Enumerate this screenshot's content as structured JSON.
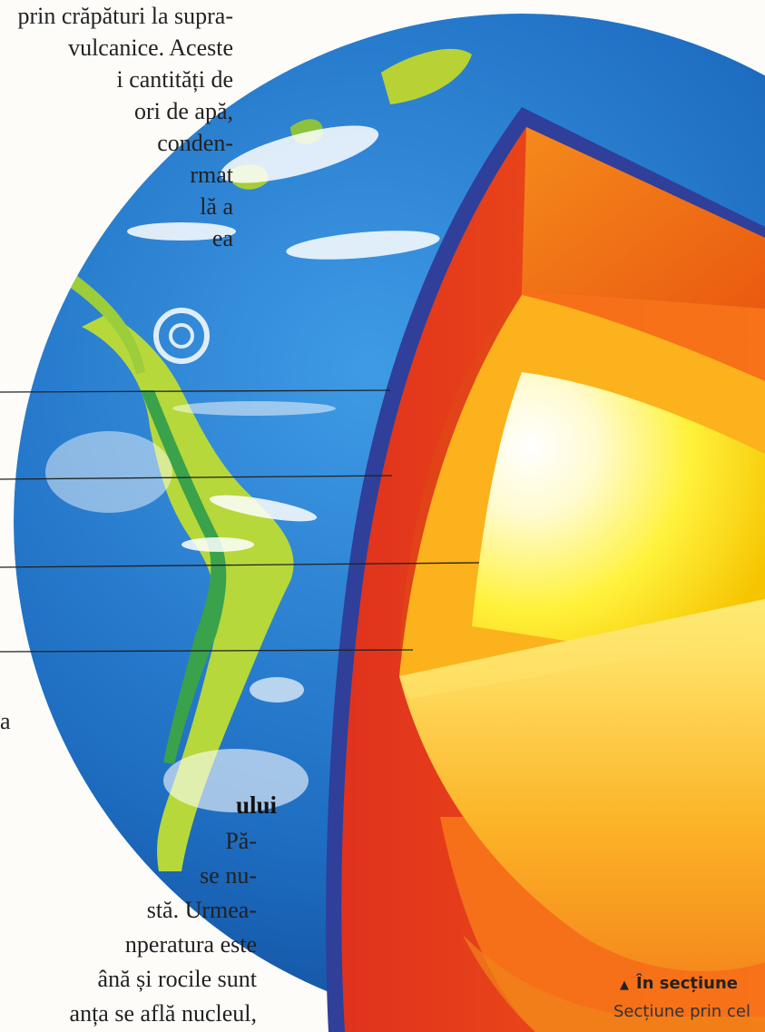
{
  "text_top": {
    "lines": [
      "prin crăpături la supra-",
      "vulcanice. Aceste",
      "i cantități de",
      "ori de apă,",
      "conden-",
      "rmat",
      "lă a",
      "ea"
    ]
  },
  "fragment": "a",
  "section": {
    "heading": "ului",
    "lines": [
      "Pă-",
      "se nu-",
      "stă. Urmea-",
      "nperatura este",
      "ână și rocile sunt",
      "anța se află nucleul,"
    ]
  },
  "caption": {
    "title": "În secțiune",
    "text": "Secțiune prin cel"
  },
  "colors": {
    "ocean": "#1c6fc2",
    "outline": "#2f3f9a",
    "crust_cut": "#d93a1e",
    "mantle": "#f06a14",
    "outer_core": "#fbc214",
    "inner_core": "#fff6a8"
  }
}
